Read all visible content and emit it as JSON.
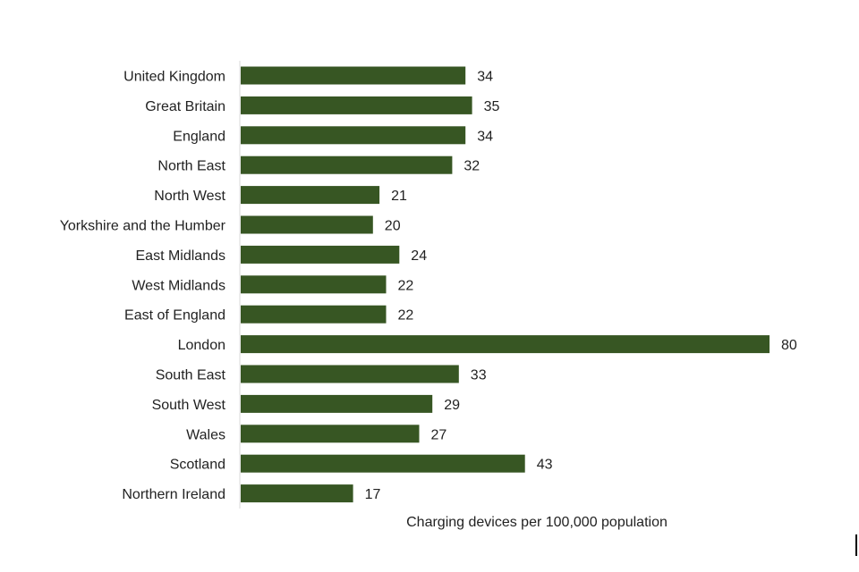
{
  "chart_data": {
    "type": "bar",
    "orientation": "horizontal",
    "categories": [
      "United Kingdom",
      "Great Britain",
      "England",
      "North East",
      "North West",
      "Yorkshire and the Humber",
      "East Midlands",
      "West Midlands",
      "East of England",
      "London",
      "South East",
      "South West",
      "Wales",
      "Scotland",
      "Northern Ireland"
    ],
    "values": [
      34,
      35,
      34,
      32,
      21,
      20,
      24,
      22,
      22,
      80,
      33,
      29,
      27,
      43,
      17
    ],
    "value_labels": [
      "34",
      "35",
      "34",
      "32",
      "21",
      "20",
      "24",
      "22",
      "22",
      "80",
      "33",
      "29",
      "27",
      "43",
      "17"
    ],
    "xlabel": "Charging devices per 100,000 population",
    "ylabel": "",
    "xlim": [
      0,
      80
    ],
    "grid": false,
    "bar_color": "#375623"
  }
}
